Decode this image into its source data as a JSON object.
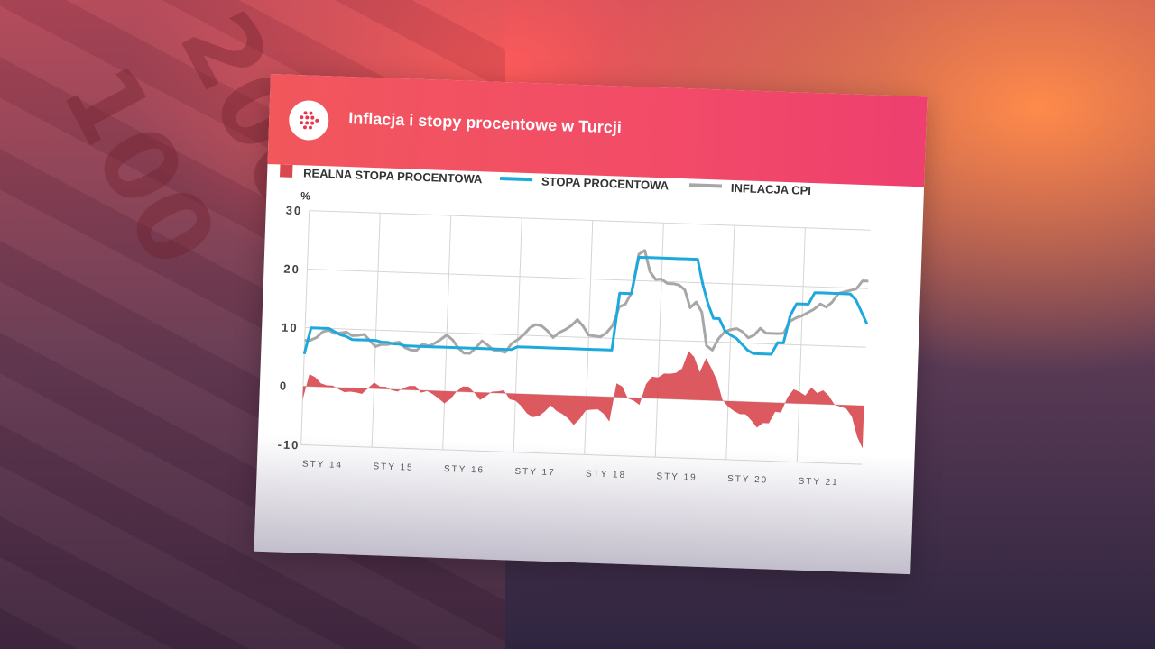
{
  "header": {
    "title": "Inflacja i stopy procentowe w Turcji"
  },
  "colors": {
    "real_rate": "#d9474f",
    "policy_rate": "#1ea9dc",
    "cpi": "#a7a7a7",
    "header": "#f2575c"
  },
  "chart_data": {
    "type": "line",
    "title": "Inflacja i stopy procentowe w Turcji",
    "ylabel": "%",
    "ylim": [
      -10,
      30
    ],
    "yticks": [
      "30",
      "20",
      "10",
      "0",
      "-10"
    ],
    "yticks_values": [
      30,
      20,
      10,
      0,
      -10
    ],
    "xticks": [
      "STY 14",
      "STY 15",
      "STY 16",
      "STY 17",
      "STY 18",
      "STY 19",
      "STY 20",
      "STY 21"
    ],
    "x_start": "2014-01",
    "x_end": "2021-12",
    "grid": true,
    "legend": {
      "placement": "top",
      "entries": [
        "REALNA STOPA PROCENTOWA",
        "STOPA PROCENTOWA",
        "INFLACJA CPI"
      ]
    },
    "series": [
      {
        "name": "STOPA PROCENTOWA",
        "style": "line",
        "values": [
          5.5,
          10,
          10,
          10,
          10,
          9.5,
          9,
          8.75,
          8.25,
          8.25,
          8.25,
          8.25,
          8.25,
          8,
          8,
          7.75,
          7.75,
          7.5,
          7.5,
          7.5,
          7.5,
          7.5,
          7.5,
          7.5,
          7.5,
          7.5,
          7.5,
          7.5,
          7.5,
          7.5,
          7.5,
          7.5,
          7.5,
          7.5,
          7.5,
          7.5,
          8,
          8,
          8,
          8,
          8,
          8,
          8,
          8,
          8,
          8,
          8,
          8,
          8,
          8,
          8,
          8,
          8,
          17.75,
          17.75,
          17.75,
          24,
          24,
          24,
          24,
          24,
          24,
          24,
          24,
          24,
          24,
          24,
          19.75,
          16.5,
          14,
          14,
          12,
          11.25,
          10.75,
          9.75,
          8.75,
          8.25,
          8.25,
          8.25,
          8.25,
          10.25,
          10.25,
          15,
          17,
          17,
          17,
          19,
          19,
          19,
          19,
          19,
          19,
          19,
          18,
          16,
          14
        ]
      },
      {
        "name": "INFLACJA CPI",
        "style": "line",
        "values": [
          7.8,
          7.9,
          8.4,
          9.4,
          9.7,
          9.2,
          9.3,
          9.5,
          8.9,
          9.0,
          9.2,
          8.2,
          7.2,
          7.6,
          7.6,
          7.9,
          8.1,
          7.2,
          6.8,
          6.8,
          7.9,
          7.6,
          8.1,
          8.8,
          9.6,
          8.8,
          7.5,
          6.6,
          6.6,
          7.6,
          8.8,
          8.1,
          7.3,
          7.2,
          7.0,
          8.5,
          9.2,
          10.1,
          11.3,
          11.9,
          11.7,
          10.9,
          9.8,
          10.7,
          11.2,
          11.9,
          13.0,
          11.9,
          10.4,
          10.3,
          10.2,
          10.9,
          12.2,
          15.4,
          15.9,
          17.9,
          24.5,
          25.2,
          21.6,
          20.3,
          20.4,
          19.7,
          19.7,
          19.5,
          18.7,
          15.7,
          16.7,
          15.0,
          9.3,
          8.6,
          10.6,
          11.8,
          12.2,
          12.4,
          11.9,
          10.9,
          11.4,
          12.6,
          11.8,
          11.8,
          11.8,
          11.9,
          14.0,
          14.6,
          15.0,
          15.6,
          16.2,
          17.1,
          16.6,
          17.5,
          19.0,
          19.3,
          19.6,
          19.9,
          21.3,
          21.3
        ]
      },
      {
        "name": "REALNA STOPA PROCENTOWA",
        "style": "area",
        "values": [
          -2.3,
          2.1,
          1.6,
          0.6,
          0.3,
          0.3,
          -0.3,
          -0.75,
          -0.65,
          -0.75,
          -0.95,
          0.05,
          1.05,
          0.4,
          0.4,
          -0.15,
          -0.35,
          0.3,
          0.7,
          0.7,
          -0.4,
          -0.1,
          -0.6,
          -1.3,
          -2.1,
          -1.3,
          0,
          0.9,
          0.9,
          -0.1,
          -1.3,
          -0.6,
          0.2,
          0.3,
          0.5,
          -1.0,
          -1.2,
          -2.1,
          -3.3,
          -3.9,
          -3.7,
          -2.9,
          -1.8,
          -2.7,
          -3.2,
          -3.9,
          -5.0,
          -3.9,
          -2.4,
          -2.3,
          -2.2,
          -2.9,
          -4.2,
          2.35,
          1.85,
          -0.15,
          -0.5,
          -1.2,
          2.4,
          3.7,
          3.6,
          4.3,
          4.3,
          4.5,
          5.3,
          8.3,
          7.3,
          4.75,
          7.2,
          5.4,
          3.4,
          0.2,
          -0.95,
          -1.65,
          -2.15,
          -2.15,
          -3.15,
          -4.35,
          -3.55,
          -3.55,
          -1.55,
          -1.65,
          1.0,
          2.4,
          2.0,
          1.4,
          2.8,
          1.9,
          2.4,
          1.5,
          0,
          -0.3,
          -0.6,
          -1.9,
          -5.3,
          -7.3
        ]
      }
    ]
  }
}
